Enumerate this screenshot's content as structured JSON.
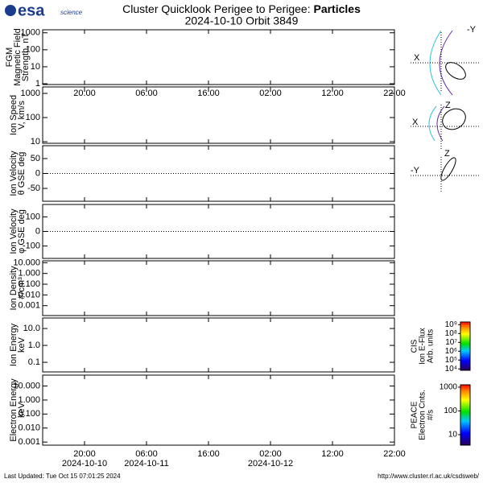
{
  "header": {
    "logo": "esa",
    "logo_sub": "science",
    "title": "Cluster Quicklook Perigee to Perigee: ",
    "title_bold": "Particles",
    "subtitle": "2024-10-10 Orbit 3849"
  },
  "chart_data": [
    {
      "type": "line",
      "ylabel": [
        "FGM",
        "Magnetic Field",
        "Strength, nT"
      ],
      "log_y": true,
      "ylim": [
        0.9,
        1500
      ],
      "yticks": [
        1,
        10,
        100,
        1000
      ],
      "xlim": [
        13.25,
        70
      ],
      "xticks": [
        {
          "value": 20,
          "label": "20:00"
        },
        {
          "value": 30,
          "label": "06:00"
        },
        {
          "value": 40,
          "label": "16:00"
        },
        {
          "value": 50,
          "label": "02:00"
        },
        {
          "value": 60,
          "label": "12:00"
        },
        {
          "value": 70,
          "label": "22:00"
        }
      ],
      "series": []
    },
    {
      "type": "line",
      "ylabel": [
        "Ion Speed",
        "V, km/s"
      ],
      "log_y": true,
      "ylim": [
        8.6,
        1850
      ],
      "yticks": [
        10,
        100,
        1000
      ],
      "xlim": [
        13.25,
        70
      ],
      "series": []
    },
    {
      "type": "line",
      "ylabel": [
        "Ion Velocity",
        "θ GSE deg"
      ],
      "log_y": false,
      "zero_line": true,
      "ylim": [
        -93,
        93
      ],
      "yticks": [
        -50,
        0,
        50
      ],
      "xlim": [
        13.25,
        70
      ],
      "series": []
    },
    {
      "type": "line",
      "ylabel": [
        "Ion Velocity",
        "φ GSE deg"
      ],
      "log_y": false,
      "zero_line": true,
      "ylim": [
        -185,
        185
      ],
      "yticks": [
        -100,
        0,
        100
      ],
      "xlim": [
        13.25,
        70
      ],
      "series": []
    },
    {
      "type": "line",
      "ylabel": [
        "Ion Density",
        "#/cm³"
      ],
      "log_y": true,
      "ylim": [
        0.00012,
        15
      ],
      "yticks": [
        {
          "value": 0.001,
          "label": "0.001"
        },
        {
          "value": 0.01,
          "label": "0.010"
        },
        {
          "value": 0.1,
          "label": "0.100"
        },
        {
          "value": 1,
          "label": "1.000"
        },
        {
          "value": 10,
          "label": "10.000"
        }
      ],
      "xlim": [
        13.25,
        70
      ],
      "series": []
    },
    {
      "type": "line",
      "ylabel": [
        "Ion Energy",
        "keV"
      ],
      "log_y": true,
      "ylim": [
        0.027,
        42
      ],
      "yticks": [
        0.1,
        {
          "value": 1,
          "label": "1.0"
        },
        {
          "value": 10,
          "label": "10.0"
        }
      ],
      "xlim": [
        13.25,
        70
      ],
      "series": []
    },
    {
      "type": "line",
      "ylabel": [
        "Electron Energy",
        "keV"
      ],
      "log_y": true,
      "ylim": [
        0.0006,
        60
      ],
      "yticks": [
        {
          "value": 0.001,
          "label": "0.001"
        },
        {
          "value": 0.01,
          "label": "0.010"
        },
        {
          "value": 0.1,
          "label": "0.100"
        },
        {
          "value": 1,
          "label": "1.000"
        },
        {
          "value": 10,
          "label": "10.000"
        }
      ],
      "xlim": [
        13.25,
        70
      ],
      "xticks": [
        {
          "value": 20,
          "label": "20:00"
        },
        {
          "value": 30,
          "label": "06:00"
        },
        {
          "value": 40,
          "label": "16:00"
        },
        {
          "value": 50,
          "label": "02:00"
        },
        {
          "value": 60,
          "label": "12:00"
        },
        {
          "value": 70,
          "label": "22:00"
        }
      ],
      "xdates": [
        {
          "value": 20,
          "label": "2024-10-10"
        },
        {
          "value": 30,
          "label": "2024-10-11"
        },
        {
          "value": 50,
          "label": "2024-10-12"
        }
      ],
      "series": []
    }
  ],
  "orbit": {
    "labels": [
      "X",
      "-Y",
      "X",
      "Z",
      "-Y",
      "Z"
    ]
  },
  "colorbars": [
    {
      "label": [
        "CIS",
        "Ion E-Flux",
        "Arb. units"
      ],
      "ylim": [
        7000,
        2000000000
      ],
      "yticks": [
        {
          "value": 10000,
          "label": "10⁴"
        },
        {
          "value": 100000,
          "label": "10⁵"
        },
        {
          "value": 1000000,
          "label": "10⁶"
        },
        {
          "value": 10000000,
          "label": "10⁷"
        },
        {
          "value": 100000000,
          "label": "10⁸"
        },
        {
          "value": 1000000000,
          "label": "10⁹"
        }
      ]
    },
    {
      "label": [
        "PEACE",
        "Electron Cnts.",
        "#/s"
      ],
      "ylim": [
        3.6,
        1260
      ],
      "yticks": [
        10,
        100,
        1000
      ]
    }
  ],
  "footer": {
    "left": "Last Updated:  Tue Oct 15 07:01:25 2024",
    "right": "http://www.cluster.rl.ac.uk/csdsweb/"
  }
}
